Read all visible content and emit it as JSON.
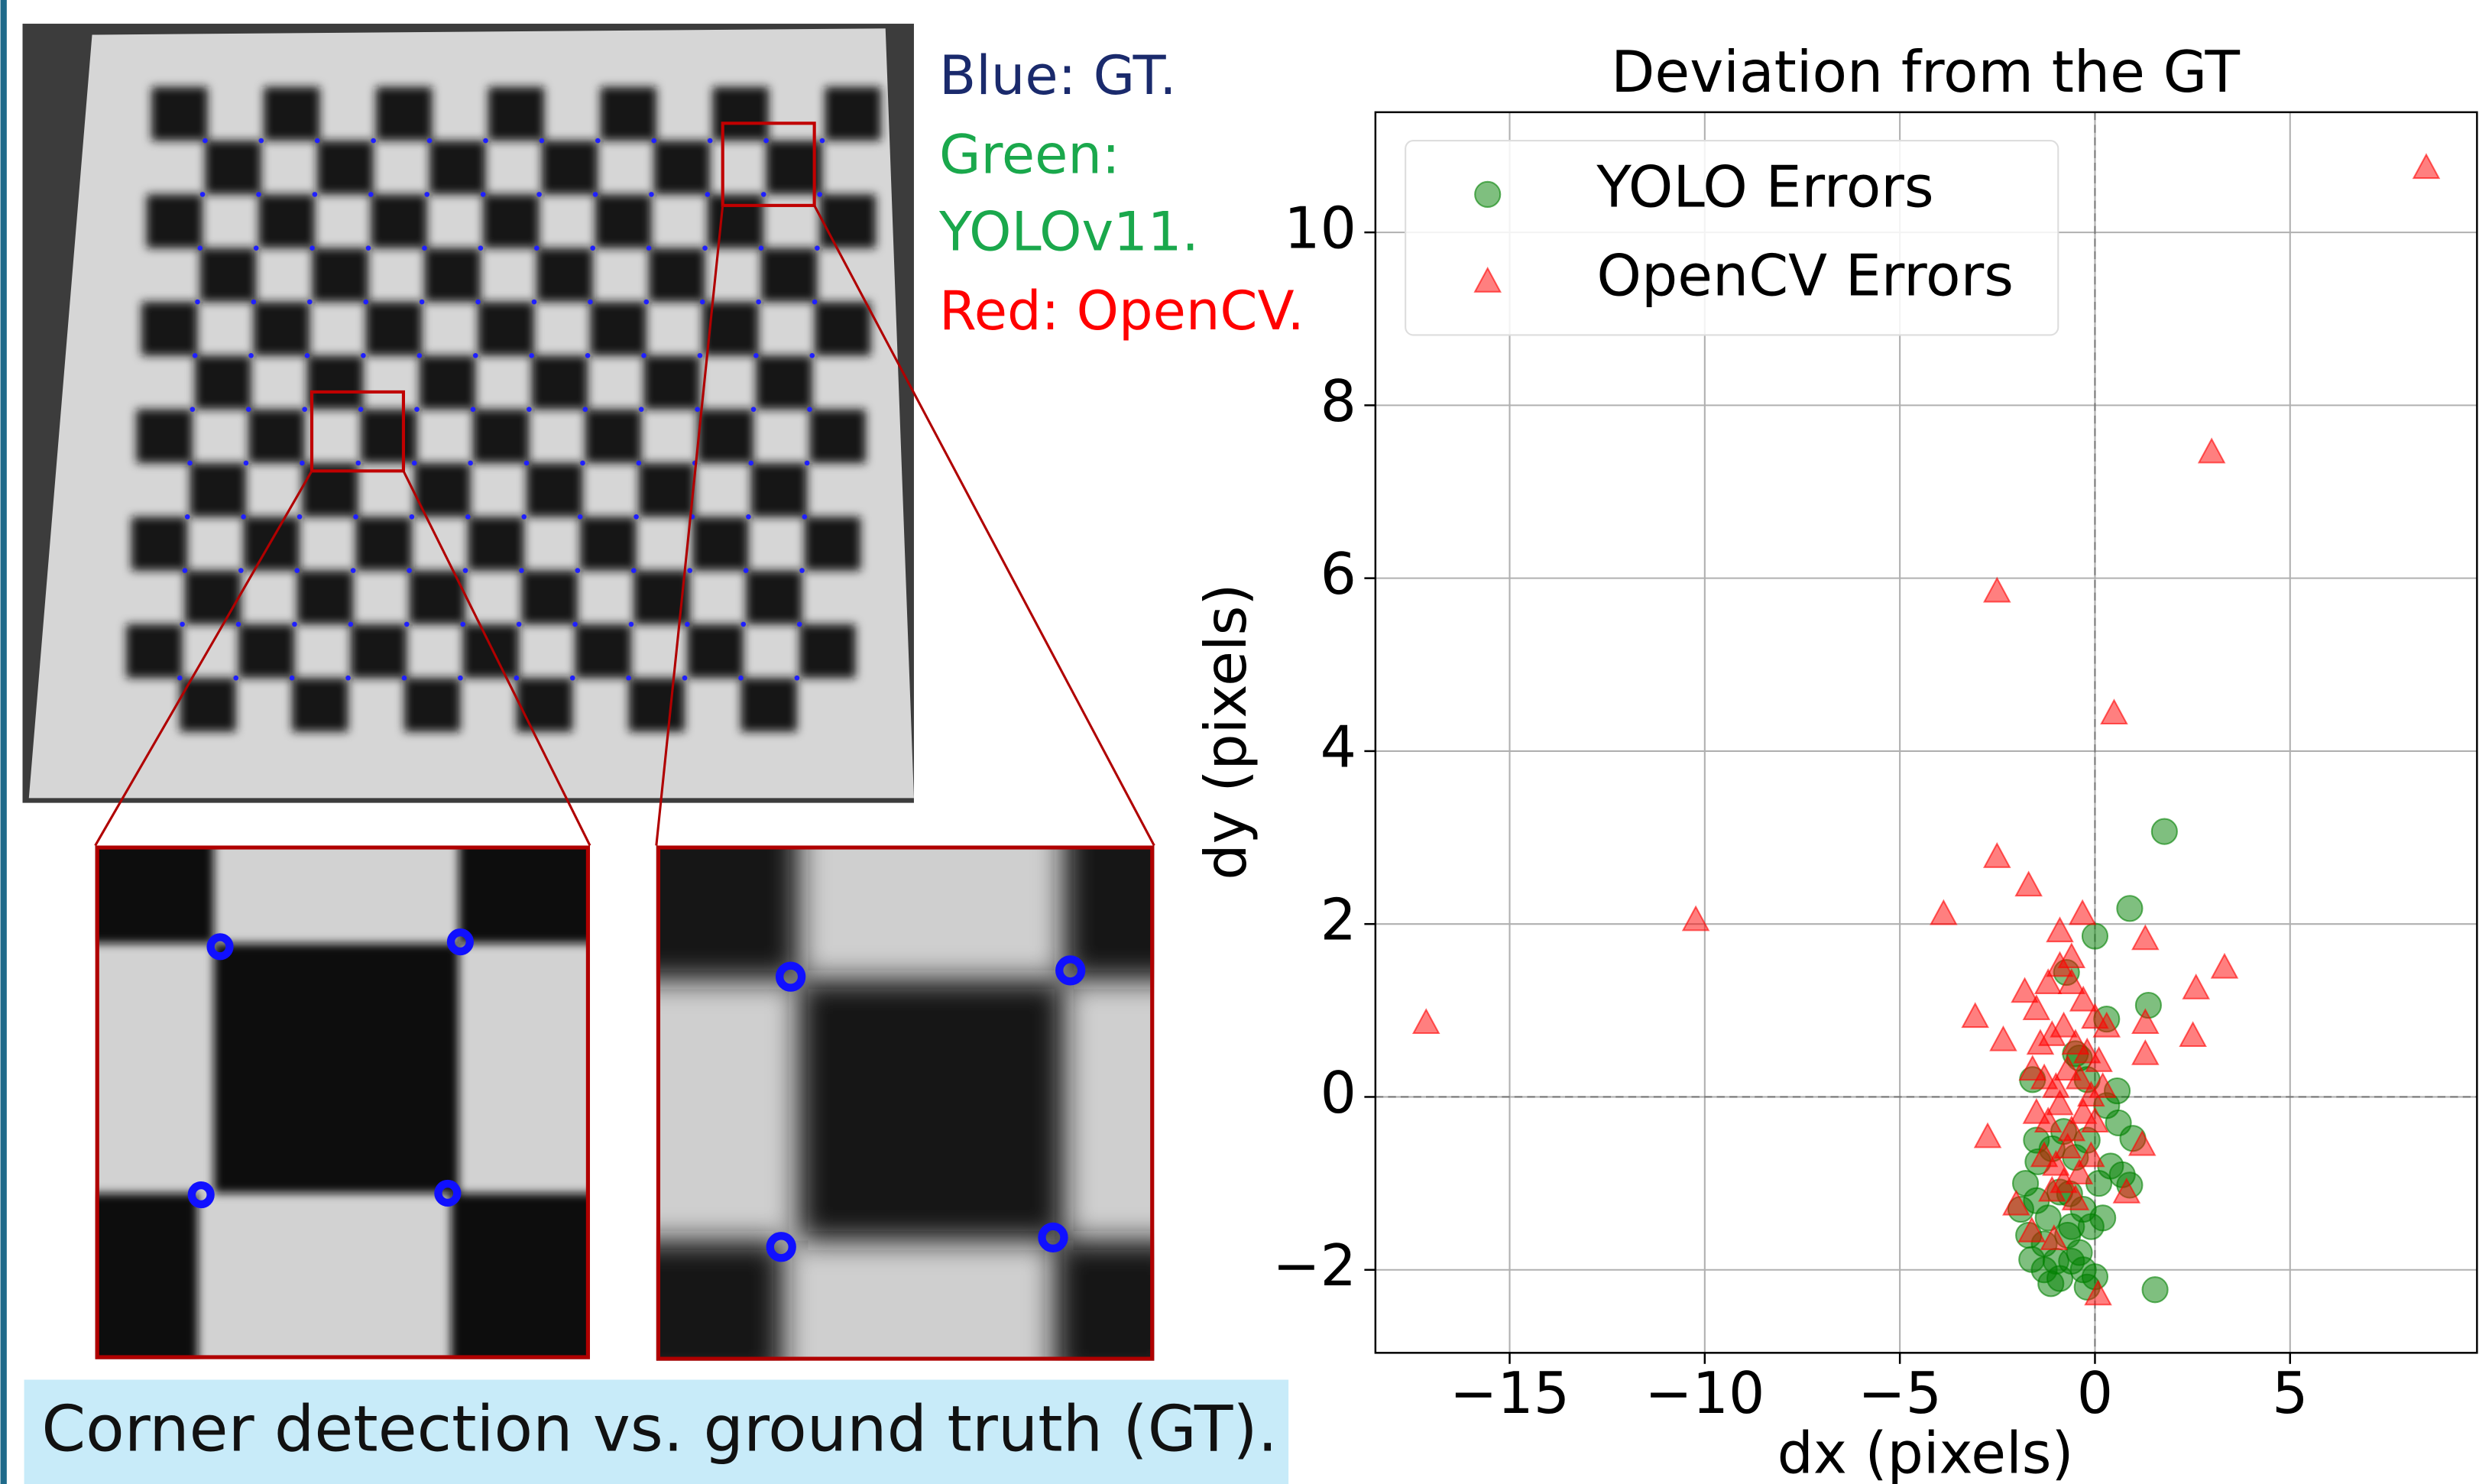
{
  "labels": [
    "Blue: GT.",
    "Green:",
    "YOLOv11.",
    "Red: OpenCV."
  ],
  "caption": "Corner detection vs. ground truth (GT).",
  "chart_data": {
    "type": "scatter",
    "title": "Deviation from the GT",
    "x_label": "dx (pixels)",
    "y_label": "dy (pixels)",
    "xlim": [
      -18.44,
      9.79
    ],
    "ylim": [
      -2.96,
      11.39
    ],
    "xticks": [
      {
        "value": -15,
        "label": "−15"
      },
      {
        "value": -10,
        "label": "−10"
      },
      {
        "value": -5,
        "label": "−5"
      },
      0,
      5
    ],
    "yticks": [
      {
        "value": -2,
        "label": "−2"
      },
      0,
      2,
      4,
      6,
      8,
      10
    ],
    "grid": true,
    "zero_lines": true,
    "legend": "upper left",
    "series": [
      {
        "name": "YOLO Errors",
        "color": "#008000",
        "marker": "circle",
        "x": [
          1.78,
          0.89,
          0,
          -0.73,
          1.37,
          0.57,
          1.54,
          -1.13,
          -1.62,
          0,
          -0.65,
          0.89,
          0.97,
          -1.78,
          -1.46,
          -0.4,
          -0.2,
          0.3,
          0.6,
          -1.9,
          -1.5,
          -1.2,
          -0.9,
          -0.6,
          -0.3,
          0.1,
          0.4,
          -1.7,
          -1.3,
          -1.0,
          -0.7,
          -0.4,
          -0.1,
          0.2,
          -1.5,
          -1.1,
          -0.8,
          -0.5,
          -0.2,
          -1.3,
          -0.9,
          -0.6,
          -0.3,
          0.7,
          -1.6,
          -0.2,
          -0.5,
          0.3
        ],
        "y": [
          3.07,
          2.18,
          1.86,
          1.44,
          1.06,
          0.07,
          -2.23,
          -2.16,
          -1.88,
          -2.08,
          -1.12,
          -1.02,
          -0.48,
          -1.0,
          -0.75,
          0.45,
          0.2,
          -0.1,
          -0.3,
          -1.3,
          -1.2,
          -1.4,
          -1.1,
          -1.5,
          -1.3,
          -1.0,
          -0.8,
          -1.6,
          -1.7,
          -1.9,
          -1.6,
          -1.8,
          -1.5,
          -1.4,
          -0.5,
          -0.6,
          -0.4,
          -0.7,
          -0.5,
          -2.0,
          -2.1,
          -1.9,
          -2.0,
          -0.9,
          0.2,
          -2.2,
          0.5,
          0.9
        ]
      },
      {
        "name": "OpenCV Errors",
        "color": "#ff0000",
        "marker": "triangle",
        "x": [
          8.49,
          2.99,
          -2.51,
          0.49,
          -10.23,
          -17.14,
          -3.88,
          -2.51,
          -1.7,
          -0.32,
          1.29,
          3.32,
          2.59,
          -3.07,
          -2.35,
          2.51,
          1.29,
          1.29,
          -2.75,
          0.08,
          -2.02,
          -1.62,
          -1.05,
          0.81,
          1.21,
          -1.8,
          -1.5,
          -1.2,
          -0.9,
          -0.6,
          -0.3,
          0,
          0.3,
          -1.4,
          -1.1,
          -0.8,
          -0.5,
          -0.2,
          0.1,
          -1.6,
          -1.3,
          -1.0,
          -0.7,
          -0.4,
          -0.1,
          0.2,
          -1.5,
          -1.2,
          -0.9,
          -0.6,
          -0.3,
          0,
          -1.3,
          -1.0,
          -0.7,
          -0.4,
          -0.1,
          -1.1,
          -0.8,
          -0.5,
          -0.9,
          -0.6
        ],
        "y": [
          10.73,
          7.44,
          5.83,
          4.42,
          2.03,
          0.84,
          2.1,
          2.76,
          2.43,
          2.1,
          1.81,
          1.48,
          1.24,
          0.91,
          0.64,
          0.69,
          0.84,
          0.48,
          -0.48,
          -2.3,
          -1.26,
          -1.57,
          -1.66,
          -1.12,
          -0.57,
          1.2,
          1.0,
          1.3,
          1.5,
          1.3,
          1.1,
          0.9,
          0.8,
          0.6,
          0.7,
          0.8,
          0.6,
          0.5,
          0.4,
          0.3,
          0.2,
          0.1,
          0.3,
          0.2,
          0,
          0.1,
          -0.2,
          -0.3,
          -0.1,
          -0.4,
          -0.2,
          -0.3,
          -0.7,
          -0.8,
          -0.6,
          -0.9,
          -0.7,
          -1.1,
          -1.0,
          -1.2,
          1.9,
          1.6
        ]
      }
    ]
  }
}
